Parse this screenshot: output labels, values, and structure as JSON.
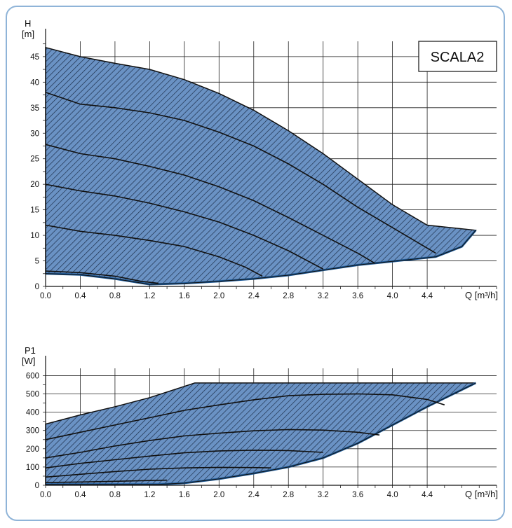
{
  "chart_data": [
    {
      "type": "area",
      "title": "",
      "ylabel": "H",
      "yunit": "[m]",
      "xlabel": "Q [m³/h]",
      "xlim": [
        0,
        5.2
      ],
      "ylim": [
        0,
        48
      ],
      "xticks": [
        "0.0",
        "0.4",
        "0.8",
        "1.2",
        "1.6",
        "2.0",
        "2.4",
        "2.8",
        "3.2",
        "3.6",
        "4.0",
        "4.4"
      ],
      "yticks": [
        "0",
        "5",
        "10",
        "15",
        "20",
        "25",
        "30",
        "35",
        "40",
        "45"
      ],
      "badge": "SCALA2",
      "grid": true,
      "fill_color": "#6a92c4",
      "outline_color": "#1f5a96",
      "envelope": {
        "top": [
          [
            0.0,
            46.8
          ],
          [
            0.4,
            45.0
          ],
          [
            0.8,
            43.7
          ],
          [
            1.2,
            42.5
          ],
          [
            1.6,
            40.5
          ],
          [
            2.0,
            37.8
          ],
          [
            2.4,
            34.5
          ],
          [
            2.8,
            30.5
          ],
          [
            3.2,
            26.0
          ],
          [
            3.6,
            21.0
          ],
          [
            4.0,
            16.0
          ],
          [
            4.4,
            12.0
          ],
          [
            4.96,
            11.0
          ]
        ],
        "bottom": [
          [
            4.96,
            11.0
          ],
          [
            4.8,
            7.8
          ],
          [
            4.5,
            5.8
          ],
          [
            4.0,
            4.9
          ],
          [
            3.6,
            4.2
          ],
          [
            3.2,
            3.2
          ],
          [
            2.8,
            2.2
          ],
          [
            2.4,
            1.5
          ],
          [
            2.0,
            1.0
          ],
          [
            1.6,
            0.6
          ],
          [
            1.2,
            0.4
          ],
          [
            0.8,
            1.5
          ],
          [
            0.4,
            2.3
          ],
          [
            0.0,
            2.5
          ]
        ]
      },
      "curves": [
        {
          "points": [
            [
              0.0,
              38.0
            ],
            [
              0.4,
              35.7
            ],
            [
              0.8,
              35.0
            ],
            [
              1.2,
              34.0
            ],
            [
              1.6,
              32.5
            ],
            [
              2.0,
              30.2
            ],
            [
              2.4,
              27.5
            ],
            [
              2.8,
              24.0
            ],
            [
              3.2,
              20.0
            ],
            [
              3.6,
              15.5
            ],
            [
              4.0,
              11.5
            ],
            [
              4.5,
              6.5
            ]
          ]
        },
        {
          "points": [
            [
              0.0,
              27.8
            ],
            [
              0.4,
              26.0
            ],
            [
              0.8,
              25.0
            ],
            [
              1.2,
              23.5
            ],
            [
              1.6,
              21.8
            ],
            [
              2.0,
              19.5
            ],
            [
              2.4,
              16.8
            ],
            [
              2.8,
              13.5
            ],
            [
              3.2,
              10.0
            ],
            [
              3.6,
              6.5
            ],
            [
              3.8,
              4.5
            ]
          ]
        },
        {
          "points": [
            [
              0.0,
              20.0
            ],
            [
              0.4,
              18.7
            ],
            [
              0.8,
              17.7
            ],
            [
              1.2,
              16.3
            ],
            [
              1.6,
              14.6
            ],
            [
              2.0,
              12.6
            ],
            [
              2.4,
              10.0
            ],
            [
              2.8,
              7.0
            ],
            [
              3.2,
              3.4
            ]
          ]
        },
        {
          "points": [
            [
              0.0,
              12.0
            ],
            [
              0.4,
              10.8
            ],
            [
              0.8,
              10.0
            ],
            [
              1.2,
              9.0
            ],
            [
              1.6,
              7.8
            ],
            [
              2.0,
              5.8
            ],
            [
              2.3,
              3.8
            ],
            [
              2.5,
              2.0
            ]
          ]
        },
        {
          "points": [
            [
              0.0,
              3.0
            ],
            [
              0.4,
              2.7
            ],
            [
              0.8,
              2.0
            ],
            [
              1.1,
              1.0
            ],
            [
              1.3,
              0.6
            ]
          ]
        }
      ]
    },
    {
      "type": "area",
      "title": "",
      "ylabel": "P1",
      "yunit": "[W]",
      "xlabel": "Q [m³/h]",
      "xlim": [
        0,
        5.2
      ],
      "ylim": [
        0,
        640
      ],
      "xticks": [
        "0.0",
        "0.4",
        "0.8",
        "1.2",
        "1.6",
        "2.0",
        "2.4",
        "2.8",
        "3.2",
        "3.6",
        "4.0",
        "4.4"
      ],
      "yticks": [
        "0",
        "100",
        "200",
        "300",
        "400",
        "500",
        "600"
      ],
      "grid": true,
      "fill_color": "#6a92c4",
      "outline_color": "#1f5a96",
      "envelope": {
        "top": [
          [
            0.0,
            335
          ],
          [
            0.4,
            385
          ],
          [
            0.8,
            430
          ],
          [
            1.2,
            480
          ],
          [
            1.72,
            560
          ],
          [
            4.96,
            560
          ]
        ],
        "bottom": [
          [
            4.96,
            560
          ],
          [
            4.4,
            430
          ],
          [
            4.0,
            330
          ],
          [
            3.6,
            230
          ],
          [
            3.2,
            150
          ],
          [
            2.8,
            100
          ],
          [
            2.4,
            65
          ],
          [
            2.0,
            35
          ],
          [
            1.6,
            12
          ],
          [
            1.3,
            5
          ],
          [
            0.0,
            5
          ]
        ]
      },
      "curves": [
        {
          "points": [
            [
              0.0,
              250
            ],
            [
              0.4,
              290
            ],
            [
              0.8,
              330
            ],
            [
              1.2,
              370
            ],
            [
              1.6,
              410
            ],
            [
              2.0,
              440
            ],
            [
              2.4,
              468
            ],
            [
              2.8,
              490
            ],
            [
              3.2,
              498
            ],
            [
              3.6,
              500
            ],
            [
              4.0,
              495
            ],
            [
              4.4,
              470
            ],
            [
              4.6,
              440
            ]
          ]
        },
        {
          "points": [
            [
              0.0,
              150
            ],
            [
              0.4,
              180
            ],
            [
              0.8,
              215
            ],
            [
              1.2,
              245
            ],
            [
              1.6,
              270
            ],
            [
              2.0,
              285
            ],
            [
              2.4,
              298
            ],
            [
              2.8,
              305
            ],
            [
              3.2,
              302
            ],
            [
              3.6,
              290
            ],
            [
              3.85,
              275
            ]
          ]
        },
        {
          "points": [
            [
              0.0,
              95
            ],
            [
              0.4,
              120
            ],
            [
              0.8,
              140
            ],
            [
              1.2,
              160
            ],
            [
              1.6,
              178
            ],
            [
              2.0,
              188
            ],
            [
              2.4,
              192
            ],
            [
              2.8,
              190
            ],
            [
              3.2,
              180
            ]
          ]
        },
        {
          "points": [
            [
              0.0,
              45
            ],
            [
              0.4,
              60
            ],
            [
              0.8,
              75
            ],
            [
              1.2,
              88
            ],
            [
              1.6,
              95
            ],
            [
              2.0,
              98
            ],
            [
              2.4,
              97
            ],
            [
              2.6,
              95
            ]
          ]
        },
        {
          "points": [
            [
              0.0,
              15
            ],
            [
              0.4,
              18
            ],
            [
              0.8,
              22
            ],
            [
              1.2,
              26
            ],
            [
              1.4,
              28
            ]
          ]
        }
      ]
    }
  ]
}
